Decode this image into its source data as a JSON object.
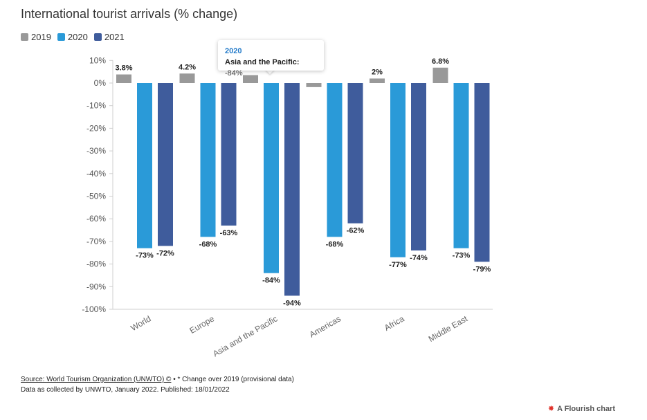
{
  "title": "International tourist arrivals (% change)",
  "legend": [
    {
      "label": "2019",
      "color": "#999999"
    },
    {
      "label": "2020",
      "color": "#2a9ad8"
    },
    {
      "label": "2021",
      "color": "#3f5c9c"
    }
  ],
  "tooltip": {
    "year": "2020",
    "category": "Asia and the Pacific:",
    "value": "-84%"
  },
  "footer": {
    "source_link": "Source: World Tourism Organization (UNWTO) ©",
    "source_note": " • * Change over 2019 (provisional data)",
    "line2": "Data as collected by UNWTO, January 2022. Published: 18/01/2022"
  },
  "flourish": {
    "logo": "✸",
    "label": "A Flourish chart"
  },
  "chart_data": {
    "type": "bar",
    "categories": [
      "World",
      "Europe",
      "Asia and the Pacific",
      "Americas",
      "Africa",
      "Middle East"
    ],
    "series": [
      {
        "name": "2019",
        "color": "#999999",
        "values": [
          3.8,
          4.2,
          3.5,
          -1.8,
          2,
          6.8
        ],
        "labels": [
          "3.8%",
          "4.2%",
          "",
          "",
          "2%",
          "6.8%"
        ]
      },
      {
        "name": "2020",
        "color": "#2a9ad8",
        "values": [
          -73,
          -68,
          -84,
          -68,
          -77,
          -73
        ],
        "labels": [
          "-73%",
          "-68%",
          "-84%",
          "-68%",
          "-77%",
          "-73%"
        ]
      },
      {
        "name": "2021",
        "color": "#3f5c9c",
        "values": [
          -72,
          -63,
          -94,
          -62,
          -74,
          -79
        ],
        "labels": [
          "-72%",
          "-63%",
          "-94%",
          "-62%",
          "-74%",
          "-79%"
        ]
      }
    ],
    "yticks": [
      "10%",
      "0%",
      "-10%",
      "-20%",
      "-30%",
      "-40%",
      "-50%",
      "-60%",
      "-70%",
      "-80%",
      "-90%",
      "-100%"
    ],
    "ylim": [
      -100,
      10
    ],
    "grid": false
  }
}
